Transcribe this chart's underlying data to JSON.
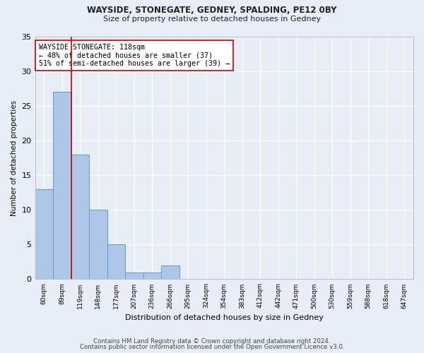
{
  "title1": "WAYSIDE, STONEGATE, GEDNEY, SPALDING, PE12 0BY",
  "title2": "Size of property relative to detached houses in Gedney",
  "xlabel": "Distribution of detached houses by size in Gedney",
  "ylabel": "Number of detached properties",
  "categories": [
    "60sqm",
    "89sqm",
    "119sqm",
    "148sqm",
    "177sqm",
    "207sqm",
    "236sqm",
    "266sqm",
    "295sqm",
    "324sqm",
    "354sqm",
    "383sqm",
    "412sqm",
    "442sqm",
    "471sqm",
    "500sqm",
    "530sqm",
    "559sqm",
    "588sqm",
    "618sqm",
    "647sqm"
  ],
  "values": [
    13,
    27,
    18,
    10,
    5,
    1,
    1,
    2,
    0,
    0,
    0,
    0,
    0,
    0,
    0,
    0,
    0,
    0,
    0,
    0,
    0
  ],
  "bar_color": "#aec6e8",
  "bar_edge_color": "#5b9bd5",
  "marker_idx": 2,
  "marker_color": "#cc0000",
  "annotation_text": "WAYSIDE STONEGATE: 118sqm\n← 48% of detached houses are smaller (37)\n51% of semi-detached houses are larger (39) →",
  "background_color": "#e8eef8",
  "grid_color": "#ffffff",
  "ylim": [
    0,
    35
  ],
  "yticks": [
    0,
    5,
    10,
    15,
    20,
    25,
    30,
    35
  ],
  "footer1": "Contains HM Land Registry data © Crown copyright and database right 2024.",
  "footer2": "Contains public sector information licensed under the Open Government Licence v3.0."
}
